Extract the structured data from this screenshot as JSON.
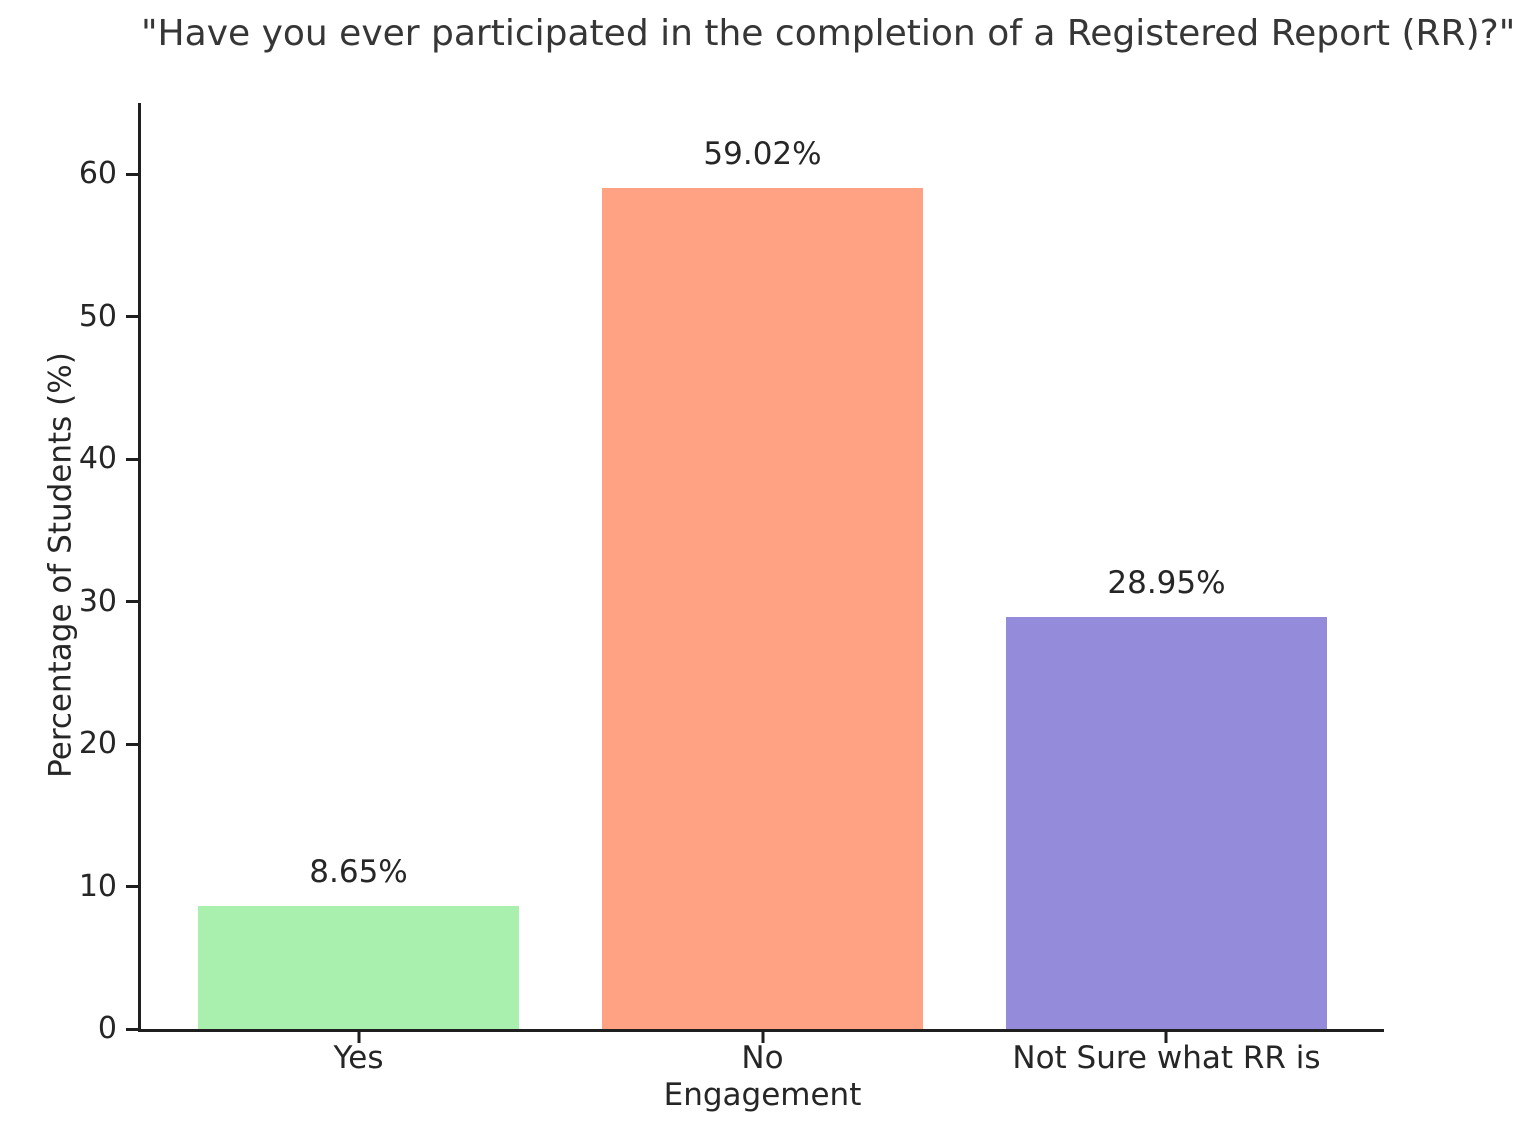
{
  "chart_data": {
    "type": "bar",
    "title": "\"Have you ever participated in the completion of a Registered Report (RR)?\"",
    "xlabel": "Engagement",
    "ylabel": "Percentage of Students (%)",
    "categories": [
      "Yes",
      "No",
      "Not Sure what RR is"
    ],
    "values": [
      8.65,
      59.02,
      28.95
    ],
    "value_labels": [
      "8.65%",
      "59.02%",
      "28.95%"
    ],
    "bar_colors": [
      "#a9f0ae",
      "#ffa183",
      "#948cda"
    ],
    "bar_centers_pct": [
      17.5,
      50,
      82.5
    ],
    "bar_width_pct": 25.9,
    "ylim": [
      0,
      65
    ],
    "yticks": [
      0,
      10,
      20,
      30,
      40,
      50,
      60
    ],
    "grid": false,
    "legend_position": "none"
  },
  "colors": {
    "background": "#ffffff",
    "spine": "#1f1f1f",
    "text": "#262626",
    "title_text": "#363636"
  }
}
